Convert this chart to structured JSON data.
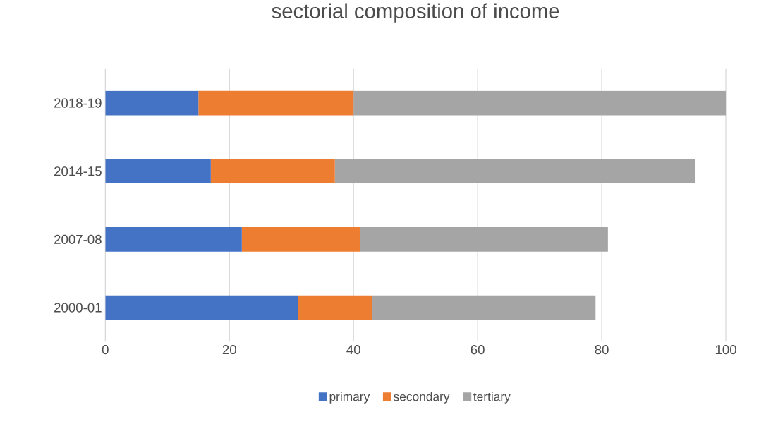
{
  "chart_data": {
    "type": "bar",
    "orientation": "horizontal",
    "stacked": true,
    "title": "sectorial composition of income",
    "categories": [
      "2018-19",
      "2014-15",
      "2007-08",
      "2000-01"
    ],
    "series": [
      {
        "name": "primary",
        "color": "#4472c4",
        "values": [
          15,
          17,
          22,
          31
        ]
      },
      {
        "name": "secondary",
        "color": "#ed7d31",
        "values": [
          25,
          20,
          19,
          12
        ]
      },
      {
        "name": "tertiary",
        "color": "#a5a5a5",
        "values": [
          60,
          58,
          40,
          36
        ]
      }
    ],
    "xlim": [
      0,
      100
    ],
    "xticks": [
      0,
      20,
      40,
      60,
      80,
      100
    ],
    "grid": "x",
    "legend": "bottom"
  }
}
